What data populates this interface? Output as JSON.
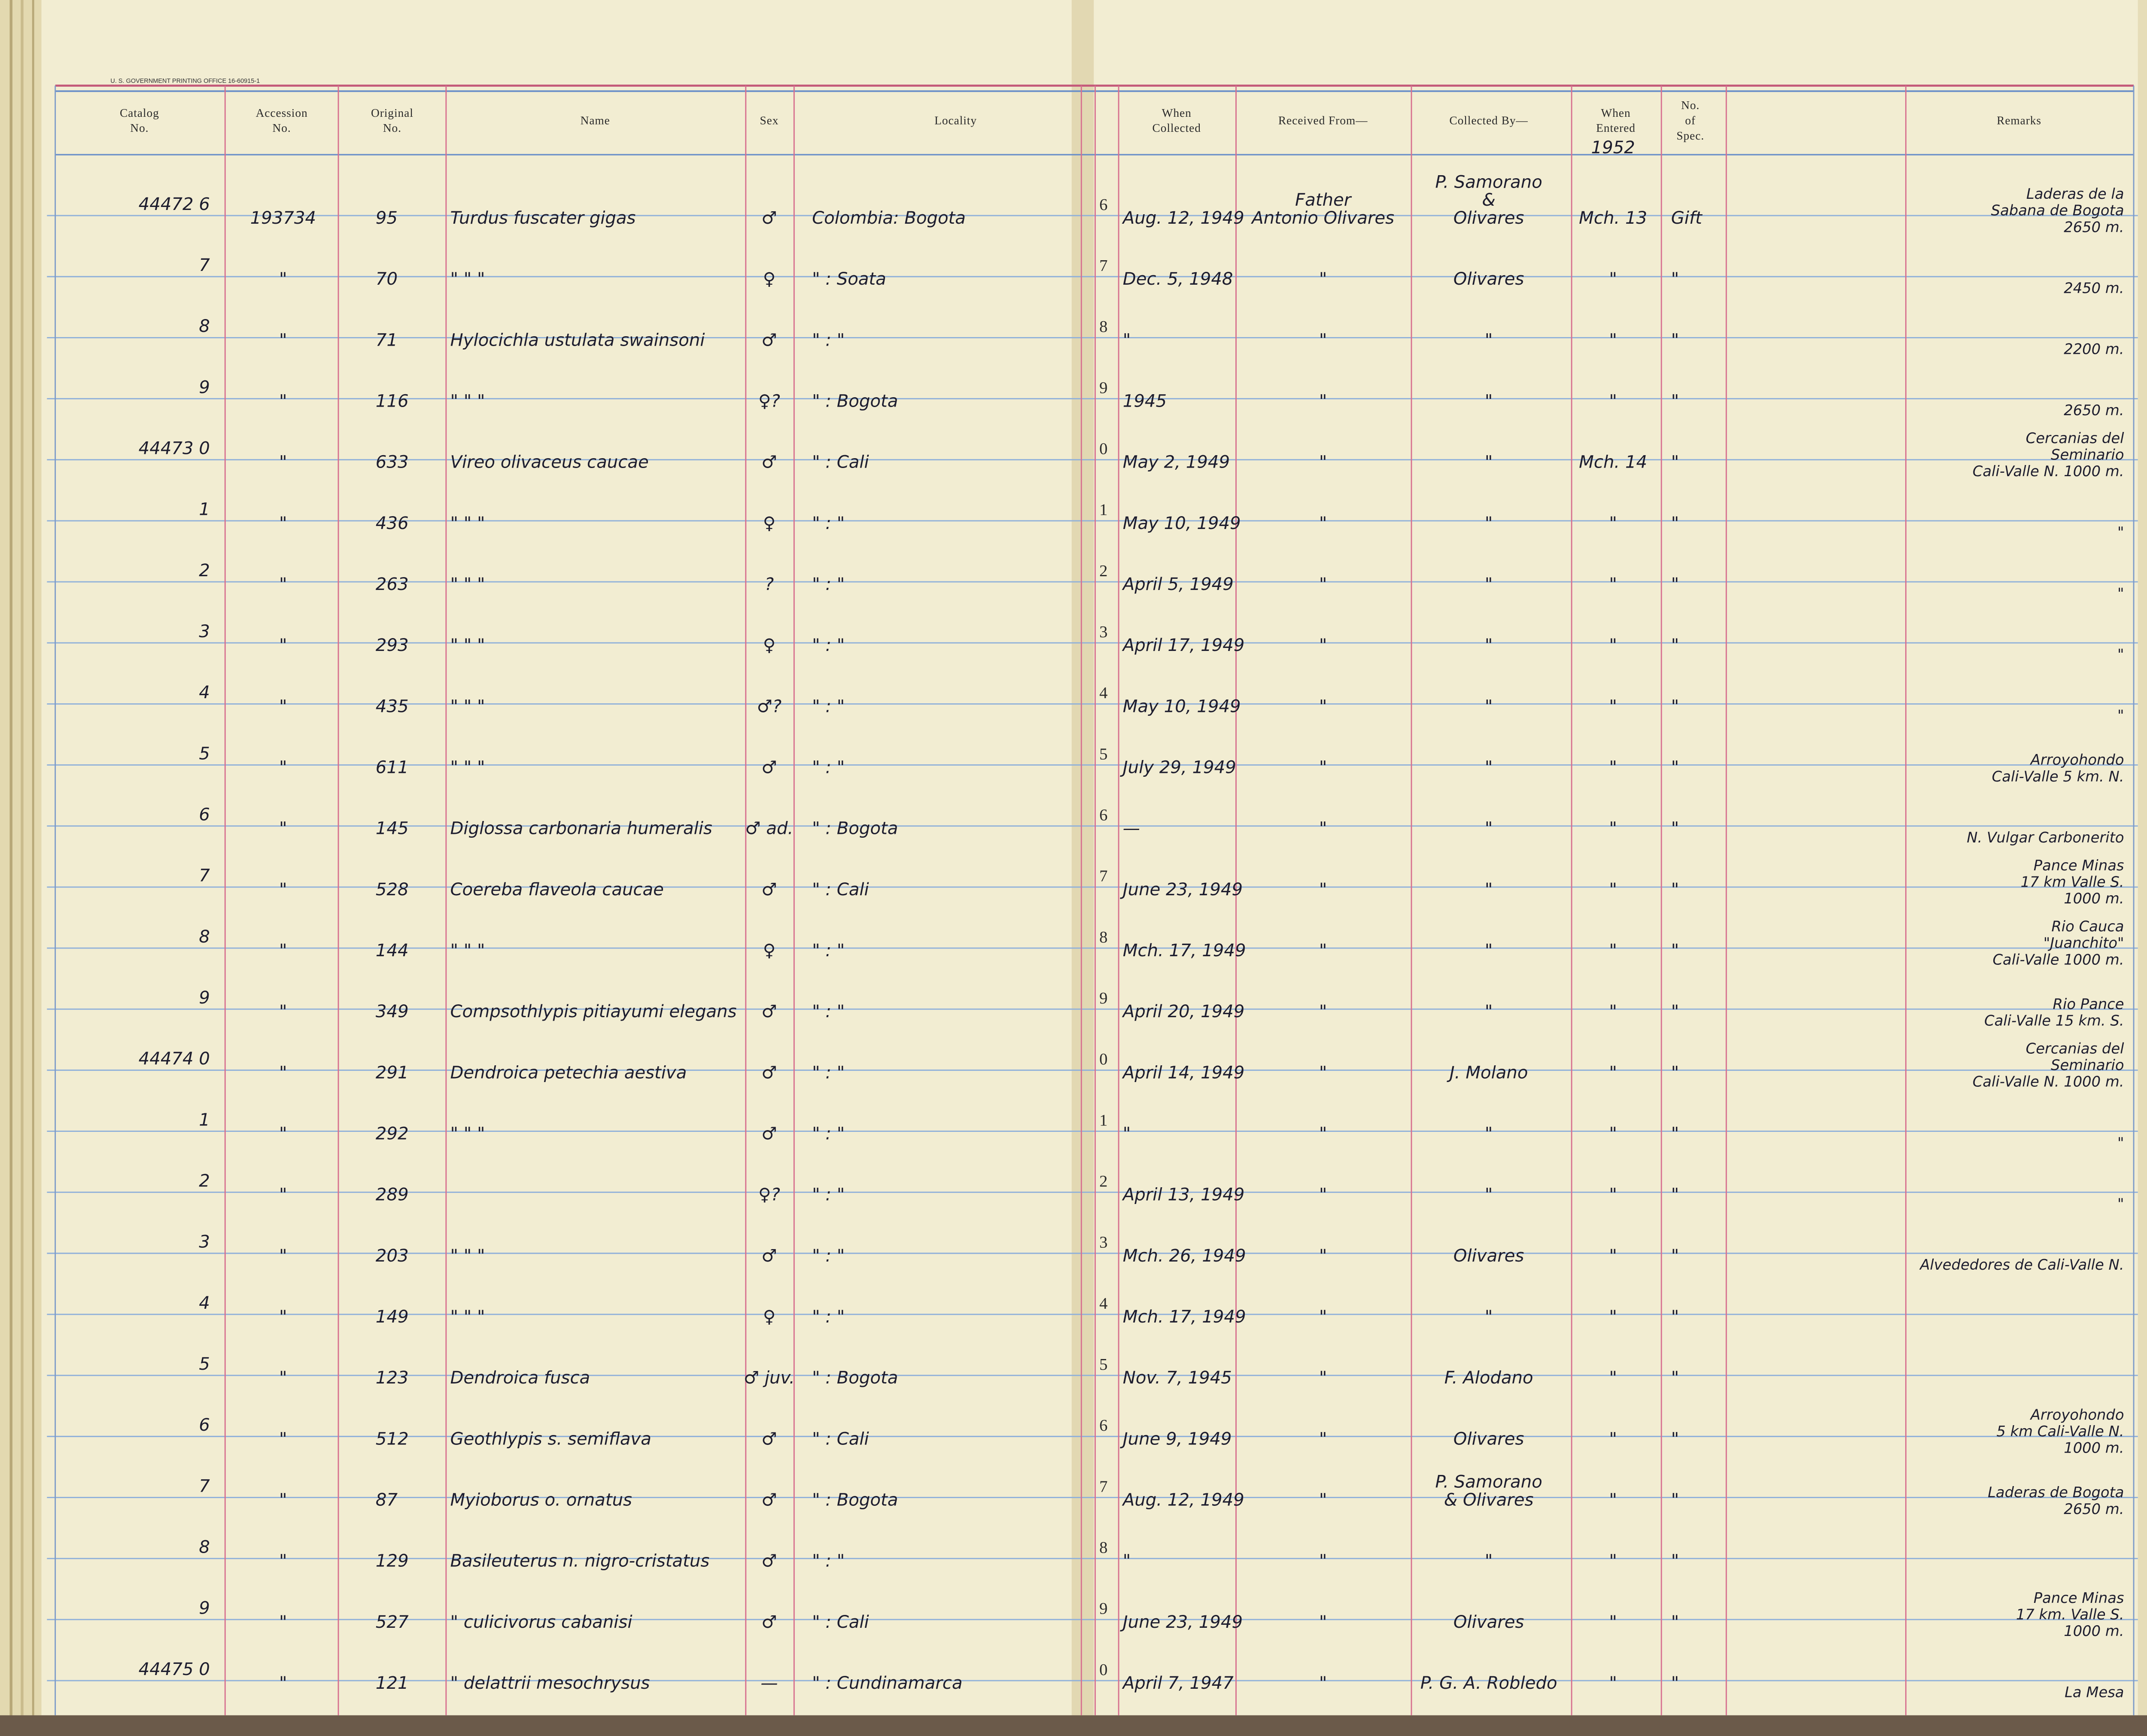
{
  "printer": "U. S. GOVERNMENT PRINTING OFFICE 16-60915-1",
  "columns": [
    [
      "Catalog",
      "No."
    ],
    [
      "Accession",
      "No."
    ],
    [
      "Original",
      "No."
    ],
    [
      "Name"
    ],
    [
      "Sex"
    ],
    [
      "Locality"
    ],
    [
      "When",
      "Collected"
    ],
    [
      "Received From—"
    ],
    [
      "Collected By—"
    ],
    [
      "When",
      "Entered"
    ],
    [
      "No.",
      "of",
      "Spec."
    ],
    [
      "Remarks"
    ]
  ],
  "entered_year": "1952",
  "rows": [
    [
      "44472 6",
      "193734",
      "95",
      "Turdus fuscater gigas",
      "♂",
      "Colombia: Bogota",
      "6",
      "Aug. 12, 1949",
      [
        "Father",
        "Antonio Olivares"
      ],
      [
        "P. Samorano",
        "&",
        "Olivares"
      ],
      "Mch. 13",
      "Gift",
      [
        "Laderas de la",
        "Sabana de Bogota",
        "2650 m."
      ]
    ],
    [
      "7",
      "\"",
      "70",
      "\"   \"   \"",
      "♀",
      "\" : Soata",
      "7",
      "Dec. 5, 1948",
      "\"",
      "Olivares",
      "\"",
      "\"",
      [
        "2450 m."
      ]
    ],
    [
      "8",
      "\"",
      "71",
      "Hylocichla ustulata swainsoni",
      "♂",
      "\" : \"",
      "8",
      "\"",
      "\"",
      "\"",
      "\"",
      "\"",
      [
        "2200 m."
      ]
    ],
    [
      "9",
      "\"",
      "116",
      "\"   \"   \"",
      "♀?",
      "\" : Bogota",
      "9",
      "1945",
      "\"",
      "\"",
      "\"",
      "\"",
      [
        "2650 m."
      ]
    ],
    [
      "44473 0",
      "\"",
      "633",
      "Vireo olivaceus caucae",
      "♂",
      "\" : Cali",
      "0",
      "May 2, 1949",
      "\"",
      "\"",
      "Mch. 14",
      "\"",
      [
        "Cercanias del",
        "Seminario",
        "Cali-Valle N. 1000 m."
      ]
    ],
    [
      "1",
      "\"",
      "436",
      "\"   \"   \"",
      "♀",
      "\" : \"",
      "1",
      "May 10, 1949",
      "\"",
      "\"",
      "\"",
      "\"",
      [
        "\""
      ]
    ],
    [
      "2",
      "\"",
      "263",
      "\"   \"   \"",
      "?",
      "\" : \"",
      "2",
      "April 5, 1949",
      "\"",
      "\"",
      "\"",
      "\"",
      [
        "\""
      ]
    ],
    [
      "3",
      "\"",
      "293",
      "\"   \"   \"",
      "♀",
      "\" : \"",
      "3",
      "April 17, 1949",
      "\"",
      "\"",
      "\"",
      "\"",
      [
        "\""
      ]
    ],
    [
      "4",
      "\"",
      "435",
      "\"   \"   \"",
      "♂?",
      "\" : \"",
      "4",
      "May 10, 1949",
      "\"",
      "\"",
      "\"",
      "\"",
      [
        "\""
      ]
    ],
    [
      "5",
      "\"",
      "611",
      "\"   \"   \"",
      "♂",
      "\" : \"",
      "5",
      "July 29, 1949",
      "\"",
      "\"",
      "\"",
      "\"",
      [
        "Arroyohondo",
        "Cali-Valle 5 km. N."
      ]
    ],
    [
      "6",
      "\"",
      "145",
      "Diglossa carbonaria humeralis",
      "♂ ad.",
      "\" : Bogota",
      "6",
      "—",
      "\"",
      "\"",
      "\"",
      "\"",
      [
        "N. Vulgar Carbonerito"
      ]
    ],
    [
      "7",
      "\"",
      "528",
      "Coereba flaveola caucae",
      "♂",
      "\" : Cali",
      "7",
      "June 23, 1949",
      "\"",
      "\"",
      "\"",
      "\"",
      [
        "Pance Minas",
        "17 km Valle S.",
        "1000 m."
      ]
    ],
    [
      "8",
      "\"",
      "144",
      "\"   \"   \"",
      "♀",
      "\" : \"",
      "8",
      "Mch. 17, 1949",
      "\"",
      "\"",
      "\"",
      "\"",
      [
        "Rio Cauca",
        "\"Juanchito\"",
        "Cali-Valle 1000 m."
      ]
    ],
    [
      "9",
      "\"",
      "349",
      "Compsothlypis pitiayumi elegans",
      "♂",
      "\" : \"",
      "9",
      "April 20, 1949",
      "\"",
      "\"",
      "\"",
      "\"",
      [
        "Rio Pance",
        "Cali-Valle 15 km. S."
      ]
    ],
    [
      "44474 0",
      "\"",
      "291",
      "Dendroica petechia aestiva",
      "♂",
      "\" : \"",
      "0",
      "April 14, 1949",
      "\"",
      "J. Molano",
      "\"",
      "\"",
      [
        "Cercanias del",
        "Seminario",
        "Cali-Valle N. 1000 m."
      ]
    ],
    [
      "1",
      "\"",
      "292",
      "\"   \"   \"",
      "♂",
      "\" : \"",
      "1",
      "\"",
      "\"",
      "\"",
      "\"",
      "\"",
      [
        "\""
      ]
    ],
    [
      "2",
      "\"",
      "289",
      null,
      "♀?",
      "\" : \"",
      "2",
      "April 13, 1949",
      "\"",
      "\"",
      "\"",
      "\"",
      [
        "\""
      ]
    ],
    [
      "3",
      "\"",
      "203",
      "\"   \"   \"",
      "♂",
      "\" : \"",
      "3",
      "Mch. 26, 1949",
      "\"",
      "Olivares",
      "\"",
      "\"",
      [
        "Alvededores de Cali-Valle N."
      ]
    ],
    [
      "4",
      "\"",
      "149",
      "\"   \"   \"",
      "♀",
      "\" : \"",
      "4",
      "Mch. 17, 1949",
      "\"",
      "\"",
      "\"",
      "\"",
      null
    ],
    [
      "5",
      "\"",
      "123",
      "Dendroica fusca",
      "♂ juv.",
      "\" : Bogota",
      "5",
      "Nov. 7, 1945",
      "\"",
      "F. Alodano",
      "\"",
      "\"",
      null
    ],
    [
      "6",
      "\"",
      "512",
      "Geothlypis s. semiflava",
      "♂",
      "\" : Cali",
      "6",
      "June 9, 1949",
      "\"",
      "Olivares",
      "\"",
      "\"",
      [
        "Arroyohondo",
        "5 km Cali-Valle N.",
        "1000 m."
      ]
    ],
    [
      "7",
      "\"",
      "87",
      "Myioborus o. ornatus",
      "♂",
      "\" : Bogota",
      "7",
      "Aug. 12, 1949",
      "\"",
      [
        "P. Samorano",
        "& Olivares"
      ],
      "\"",
      "\"",
      [
        "Laderas de Bogota",
        "2650 m."
      ]
    ],
    [
      "8",
      "\"",
      "129",
      "Basileuterus n. nigro-cristatus",
      "♂",
      "\" : \"",
      "8",
      "\"",
      "\"",
      "\"",
      "\"",
      "\"",
      null
    ],
    [
      "9",
      "\"",
      "527",
      "\" culicivorus cabanisi",
      "♂",
      "\" : Cali",
      "9",
      "June 23, 1949",
      "\"",
      "Olivares",
      "\"",
      "\"",
      [
        "Pance Minas",
        "17 km. Valle S.",
        "1000 m."
      ]
    ],
    [
      "44475 0",
      "\"",
      "121",
      "\" delattrii mesochrysus",
      "—",
      "\" : Cundinamarca",
      "0",
      "April 7, 1947",
      "\"",
      "P. G. A. Robledo",
      "\"",
      "\"",
      [
        "La Mesa"
      ]
    ]
  ]
}
